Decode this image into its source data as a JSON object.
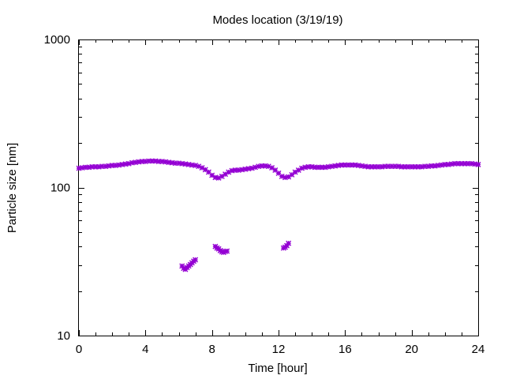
{
  "chart_data": {
    "type": "scatter",
    "title": "Modes location (3/19/19)",
    "xlabel": "Time [hour]",
    "ylabel": "Particle size [nm]",
    "xlim": [
      0,
      24
    ],
    "ylim": [
      10,
      1000
    ],
    "yscale": "log",
    "grid": false,
    "legend": "none",
    "x_ticks": [
      0,
      4,
      8,
      12,
      16,
      20,
      24
    ],
    "x_tick_labels": [
      "0",
      "4",
      "8",
      "12",
      "16",
      "20",
      "24"
    ],
    "y_major_ticks": [
      10,
      100,
      1000
    ],
    "y_tick_labels": [
      "10",
      "100",
      "1000"
    ],
    "marker_color": "#9400d3",
    "series": [
      {
        "x": [
          0.0,
          0.2,
          0.4,
          0.6,
          0.8,
          1.0,
          1.2,
          1.4,
          1.6,
          1.8,
          2.0,
          2.2,
          2.4,
          2.6,
          2.8,
          3.0,
          3.2,
          3.4,
          3.6,
          3.8,
          4.0,
          4.2,
          4.4,
          4.6,
          4.8,
          5.0,
          5.2,
          5.4,
          5.6,
          5.8,
          6.0,
          6.2,
          6.4,
          6.6,
          6.8,
          7.0,
          7.2,
          7.4,
          7.6,
          7.8,
          8.0,
          8.2,
          8.4,
          8.6,
          8.8,
          9.0,
          9.2,
          9.4,
          9.6,
          9.8,
          10.0,
          10.2,
          10.4,
          10.6,
          10.8,
          11.0,
          11.2,
          11.4,
          11.6,
          11.8,
          12.0,
          12.2,
          12.4,
          12.6,
          12.8,
          13.0,
          13.2,
          13.4,
          13.6,
          13.8,
          14.0,
          14.2,
          14.4,
          14.6,
          14.8,
          15.0,
          15.2,
          15.4,
          15.6,
          15.8,
          16.0,
          16.2,
          16.4,
          16.6,
          16.8,
          17.0,
          17.2,
          17.4,
          17.6,
          17.8,
          18.0,
          18.2,
          18.4,
          18.6,
          18.8,
          19.0,
          19.2,
          19.4,
          19.6,
          19.8,
          20.0,
          20.2,
          20.4,
          20.6,
          20.8,
          21.0,
          21.2,
          21.4,
          21.6,
          21.8,
          22.0,
          22.2,
          22.4,
          22.6,
          22.8,
          23.0,
          23.2,
          23.4,
          23.6,
          23.8,
          24.0
        ],
        "y": [
          135,
          136,
          137,
          137,
          138,
          138,
          138,
          139,
          139,
          140,
          141,
          141,
          142,
          143,
          144,
          145,
          147,
          148,
          149,
          150,
          150,
          151,
          151,
          151,
          150,
          150,
          149,
          148,
          147,
          146,
          146,
          145,
          144,
          143,
          142,
          141,
          139,
          136,
          132,
          127,
          121,
          117,
          116,
          119,
          123,
          127,
          130,
          131,
          131,
          132,
          133,
          134,
          135,
          137,
          139,
          140,
          140,
          139,
          136,
          131,
          125,
          119,
          117,
          118,
          122,
          127,
          131,
          135,
          137,
          138,
          138,
          137,
          137,
          137,
          137,
          138,
          139,
          140,
          141,
          142,
          142,
          142,
          142,
          142,
          141,
          140,
          139,
          138,
          138,
          138,
          138,
          138,
          139,
          139,
          139,
          139,
          139,
          138,
          138,
          138,
          138,
          138,
          138,
          138,
          139,
          139,
          140,
          140,
          141,
          142,
          143,
          143,
          144,
          145,
          145,
          145,
          145,
          145,
          145,
          144,
          143
        ]
      },
      {
        "x": [
          6.2,
          6.3,
          6.4,
          6.5,
          6.6,
          6.7,
          6.8,
          6.9,
          7.0,
          8.2,
          8.3,
          8.4,
          8.5,
          8.6,
          8.7,
          8.8,
          8.9,
          12.3,
          12.4,
          12.5,
          12.6
        ],
        "y": [
          29.5,
          28.5,
          28,
          28.8,
          29.5,
          30.2,
          31,
          31.8,
          32.5,
          40,
          39,
          38.5,
          37.5,
          36.8,
          36.5,
          37,
          37.2,
          39,
          39.5,
          40.5,
          42
        ]
      }
    ]
  }
}
